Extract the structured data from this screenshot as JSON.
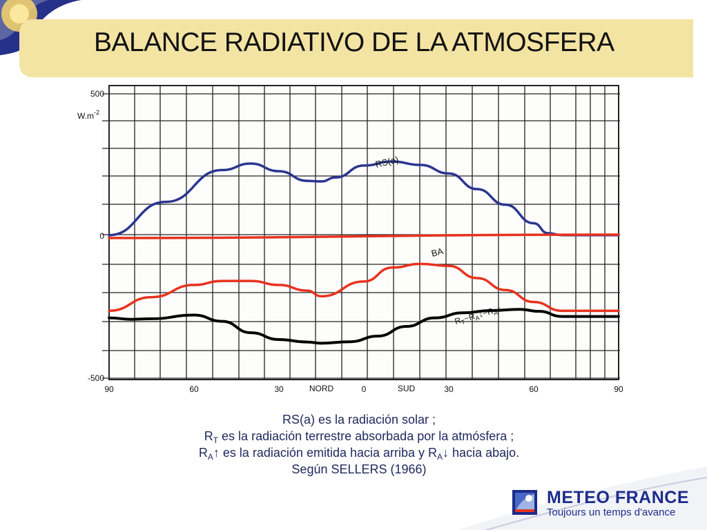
{
  "slide": {
    "title": "BALANCE RADIATIVO DE LA ATMOSFERA",
    "caption_lines": [
      [
        "RS(a) es la radiación solar ;"
      ],
      [
        "R",
        "T",
        " es la radiación terrestre absorbada por la atmósfera ;"
      ],
      [
        "R",
        "A",
        "↑ es la radiación emitida hacia arriba y R",
        "A",
        "↓ hacia abajo."
      ],
      [
        "Según SELLERS (1966)"
      ]
    ]
  },
  "brand": {
    "name": "METEO FRANCE",
    "tagline": "Toujours un temps d'avance"
  },
  "colors": {
    "title_band": "#f3e4a3",
    "deco_blue": "#26318a",
    "rs_line": "#2a3590",
    "ba_line": "#e8321e",
    "rt_line": "#000000",
    "zero_line": "#e8321e",
    "grid": "#222222"
  },
  "chart_data": {
    "type": "line",
    "x_tick_labels": [
      {
        "x": -90,
        "label": "90"
      },
      {
        "x": -60,
        "label": "60"
      },
      {
        "x": -30,
        "label": "30"
      },
      {
        "x": 0,
        "label": "0"
      },
      {
        "x": 30,
        "label": "30"
      },
      {
        "x": 60,
        "label": "60"
      },
      {
        "x": 90,
        "label": "90"
      }
    ],
    "hemisphere_labels": [
      {
        "x": -15,
        "label": "NORD"
      },
      {
        "x": 15,
        "label": "SUD"
      }
    ],
    "xlim": [
      -90,
      90
    ],
    "ylim": [
      -500,
      500
    ],
    "y_tick_labels": [
      {
        "y": 500,
        "label": "500"
      },
      {
        "y": 0,
        "label": "0"
      },
      {
        "y": -500,
        "label": "-500"
      }
    ],
    "ylabel": "W.m",
    "ylabel_sup": "-2",
    "grid": true,
    "series": [
      {
        "name": "RS(a)",
        "label": "RS(a)",
        "points": [
          [
            -90,
            3
          ],
          [
            -70,
            120
          ],
          [
            -50,
            232
          ],
          [
            -40,
            255
          ],
          [
            -30,
            228
          ],
          [
            -20,
            194
          ],
          [
            -15,
            192
          ],
          [
            -10,
            206
          ],
          [
            0,
            248
          ],
          [
            10,
            262
          ],
          [
            20,
            250
          ],
          [
            30,
            220
          ],
          [
            40,
            165
          ],
          [
            50,
            110
          ],
          [
            60,
            45
          ],
          [
            65,
            10
          ],
          [
            70,
            3
          ],
          [
            90,
            3
          ]
        ]
      },
      {
        "name": "BA",
        "label": "BA",
        "points": [
          [
            -90,
            -263
          ],
          [
            -75,
            -215
          ],
          [
            -60,
            -172
          ],
          [
            -50,
            -158
          ],
          [
            -40,
            -158
          ],
          [
            -30,
            -172
          ],
          [
            -20,
            -192
          ],
          [
            -15,
            -212
          ],
          [
            0,
            -160
          ],
          [
            10,
            -111
          ],
          [
            20,
            -98
          ],
          [
            30,
            -105
          ],
          [
            40,
            -148
          ],
          [
            50,
            -190
          ],
          [
            60,
            -232
          ],
          [
            70,
            -263
          ],
          [
            90,
            -263
          ]
        ]
      },
      {
        "name": "RT-RA↓-RA↑",
        "label_parts": [
          "R",
          "T",
          "−R",
          "A",
          "↓",
          "−R",
          "A",
          "↑"
        ],
        "points": [
          [
            -90,
            -288
          ],
          [
            -82,
            -293
          ],
          [
            -75,
            -291
          ],
          [
            -60,
            -278
          ],
          [
            -50,
            -300
          ],
          [
            -40,
            -340
          ],
          [
            -30,
            -364
          ],
          [
            -20,
            -373
          ],
          [
            -15,
            -377
          ],
          [
            -5,
            -372
          ],
          [
            5,
            -352
          ],
          [
            15,
            -318
          ],
          [
            25,
            -288
          ],
          [
            35,
            -270
          ],
          [
            45,
            -262
          ],
          [
            55,
            -258
          ],
          [
            62,
            -265
          ],
          [
            70,
            -283
          ],
          [
            90,
            -283
          ]
        ]
      },
      {
        "name": "zero",
        "points": [
          [
            -90,
            -7
          ],
          [
            90,
            5
          ]
        ]
      }
    ]
  }
}
